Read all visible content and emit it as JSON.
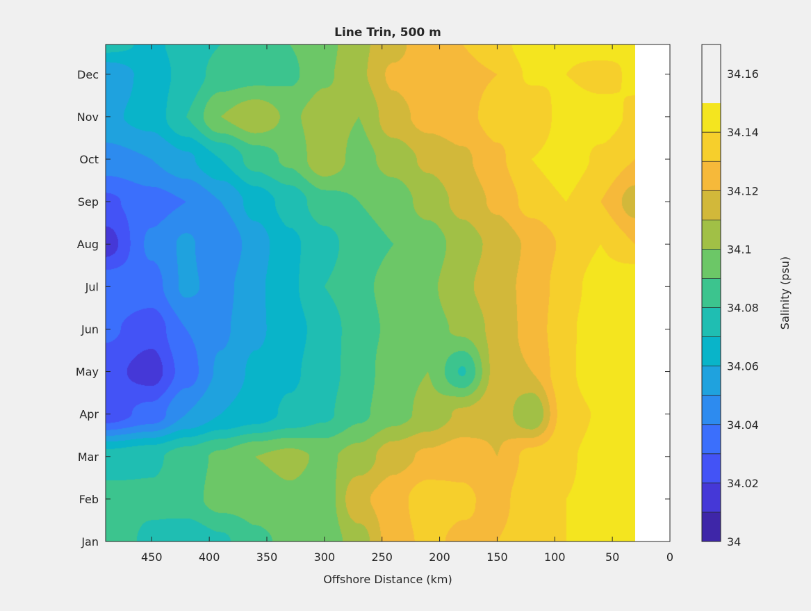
{
  "chart_data": {
    "type": "heatmap",
    "subtype": "filled contour",
    "title": "Line Trin, 500 m",
    "xlabel": "Offshore Distance (km)",
    "ylabel": "",
    "x_reversed": true,
    "xlim": [
      0,
      490
    ],
    "xticks": [
      450,
      400,
      350,
      300,
      250,
      200,
      150,
      100,
      50,
      0
    ],
    "ylim": [
      0,
      11.7
    ],
    "yticks": [
      {
        "value": 0,
        "label": "Jan"
      },
      {
        "value": 1,
        "label": "Feb"
      },
      {
        "value": 2,
        "label": "Mar"
      },
      {
        "value": 3,
        "label": "Apr"
      },
      {
        "value": 4,
        "label": "May"
      },
      {
        "value": 5,
        "label": "Jun"
      },
      {
        "value": 6,
        "label": "Jul"
      },
      {
        "value": 7,
        "label": "Aug"
      },
      {
        "value": 8,
        "label": "Sep"
      },
      {
        "value": 9,
        "label": "Oct"
      },
      {
        "value": 10,
        "label": "Nov"
      },
      {
        "value": 11,
        "label": "Dec"
      }
    ],
    "data_x_extent": [
      30,
      490
    ],
    "colorbar": {
      "label": "Salinity (psu)",
      "range": [
        34.0,
        34.17
      ],
      "level_step": 0.01,
      "ticks": [
        34,
        34.02,
        34.04,
        34.06,
        34.08,
        34.1,
        34.12,
        34.14,
        34.16
      ],
      "tick_labels": [
        "34",
        "34.02",
        "34.04",
        "34.06",
        "34.08",
        "34.1",
        "34.12",
        "34.14",
        "34.16"
      ],
      "colors": [
        "#3e26a8",
        "#4538d7",
        "#4353f6",
        "#3b6ffc",
        "#2d8bef",
        "#1fa2de",
        "#09b4c9",
        "#1fbeb2",
        "#3cc48e",
        "#6cc767",
        "#a1c046",
        "#d2b83a",
        "#f6b93a",
        "#f6cf2c",
        "#f4e51f"
      ]
    },
    "grid": {
      "x": [
        30,
        60,
        90,
        120,
        150,
        180,
        210,
        240,
        270,
        300,
        330,
        360,
        390,
        420,
        450,
        490
      ],
      "y": [
        0,
        1,
        2,
        3,
        4,
        5,
        6,
        7,
        8,
        9,
        10,
        11,
        11.7
      ],
      "z": [
        [
          34.145,
          34.146,
          34.14,
          34.137,
          34.13,
          34.128,
          34.132,
          34.126,
          34.105,
          34.094,
          34.092,
          34.088,
          34.078,
          34.072,
          34.078,
          34.086
        ],
        [
          34.156,
          34.142,
          34.14,
          34.138,
          34.126,
          34.132,
          34.136,
          34.126,
          34.118,
          34.094,
          34.098,
          34.094,
          34.094,
          34.086,
          34.082,
          34.084
        ],
        [
          34.158,
          34.143,
          34.139,
          34.134,
          34.12,
          34.126,
          34.122,
          34.116,
          34.104,
          34.098,
          34.103,
          34.1,
          34.092,
          34.085,
          34.078,
          34.074
        ],
        [
          34.148,
          34.141,
          34.136,
          34.1,
          34.118,
          34.112,
          34.103,
          34.096,
          34.088,
          34.078,
          34.072,
          34.065,
          34.06,
          34.05,
          34.034,
          34.024
        ],
        [
          34.158,
          34.148,
          34.138,
          34.12,
          34.114,
          34.079,
          34.1,
          34.096,
          34.085,
          34.076,
          34.068,
          34.062,
          34.052,
          34.035,
          34.015,
          34.024
        ],
        [
          34.165,
          34.147,
          34.138,
          34.124,
          34.113,
          34.102,
          34.096,
          34.092,
          34.086,
          34.074,
          34.066,
          34.058,
          34.048,
          34.04,
          34.024,
          34.032
        ],
        [
          34.152,
          34.145,
          34.136,
          34.123,
          34.116,
          34.108,
          34.098,
          34.093,
          34.088,
          34.08,
          34.068,
          34.058,
          34.046,
          34.052,
          34.036,
          34.038
        ],
        [
          34.13,
          34.14,
          34.132,
          34.122,
          34.113,
          34.105,
          34.094,
          34.09,
          34.086,
          34.076,
          34.068,
          34.055,
          34.04,
          34.052,
          34.042,
          34.015
        ],
        [
          34.115,
          34.13,
          34.14,
          34.134,
          34.122,
          34.113,
          34.104,
          34.094,
          34.09,
          34.086,
          34.074,
          34.064,
          34.05,
          34.04,
          34.036,
          34.028
        ],
        [
          34.13,
          34.138,
          34.146,
          34.14,
          34.128,
          34.118,
          34.112,
          34.104,
          34.096,
          34.108,
          34.092,
          34.084,
          34.07,
          34.058,
          34.05,
          34.046
        ],
        [
          34.138,
          34.145,
          34.146,
          34.13,
          34.134,
          34.127,
          34.124,
          34.116,
          34.1,
          34.106,
          34.098,
          34.108,
          34.1,
          34.08,
          34.064,
          34.058
        ],
        [
          34.142,
          34.136,
          34.14,
          34.142,
          34.13,
          34.127,
          34.128,
          34.122,
          34.108,
          34.098,
          34.088,
          34.086,
          34.084,
          34.074,
          34.064,
          34.052
        ],
        [
          34.14,
          34.145,
          34.142,
          34.146,
          34.136,
          34.13,
          34.128,
          34.116,
          34.108,
          34.096,
          34.09,
          34.082,
          34.08,
          34.074,
          34.068,
          34.074
        ]
      ]
    }
  }
}
